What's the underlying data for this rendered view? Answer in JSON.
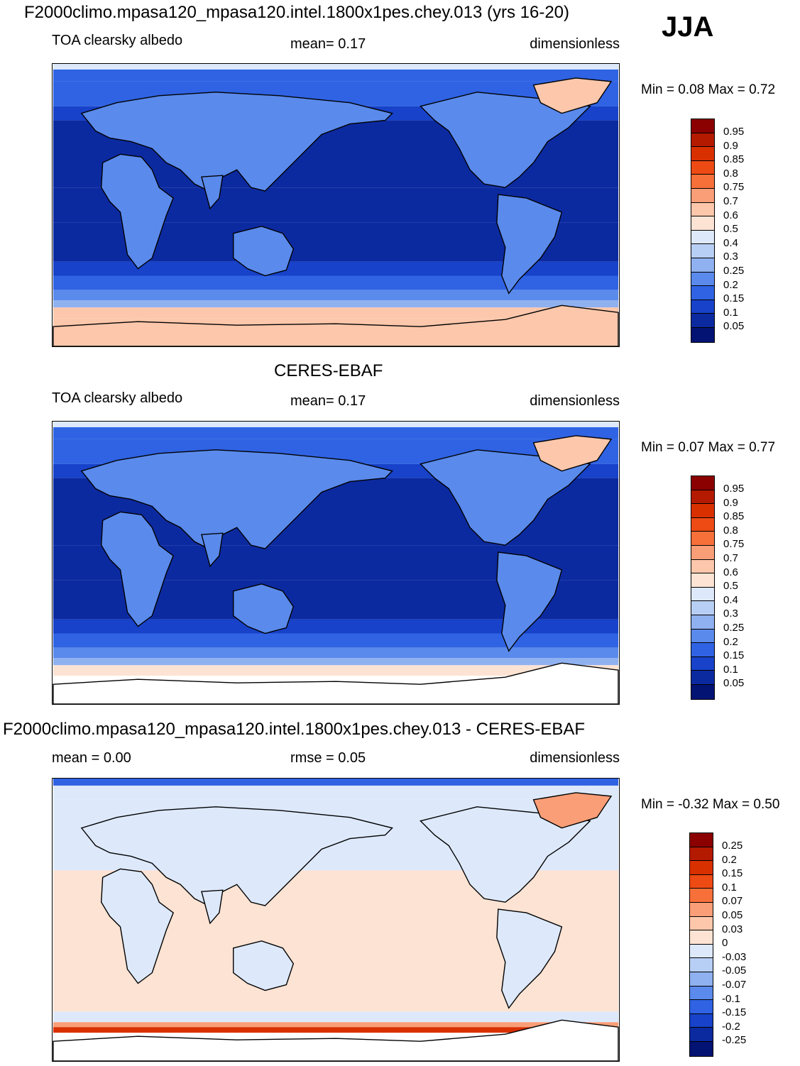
{
  "header": {
    "title": "F2000climo.mpasa120_mpasa120.intel.1800x1pes.chey.013 (yrs 16-20)",
    "season": "JJA"
  },
  "panels": [
    {
      "heading": "",
      "left_label": "TOA clearsky albedo",
      "center_label": "mean=   0.17",
      "right_label": "dimensionless",
      "minmax": "Min =   0.08 Max =   0.72"
    },
    {
      "heading": "CERES-EBAF",
      "left_label": "TOA clearsky albedo",
      "center_label": "mean=   0.17",
      "right_label": "dimensionless",
      "minmax": "Min =   0.07 Max =   0.77"
    },
    {
      "heading": "F2000climo.mpasa120_mpasa120.intel.1800x1pes.chey.013 - CERES-EBAF",
      "left_label": "mean =   0.00",
      "center_label": "rmse =    0.05",
      "right_label": "dimensionless",
      "minmax": "Min =  -0.32 Max =   0.50"
    }
  ],
  "chart_data": [
    {
      "type": "heatmap",
      "title": "TOA clearsky albedo",
      "units": "dimensionless",
      "mean": 0.17,
      "min": 0.08,
      "max": 0.72,
      "colorbar_labels": [
        "0.95",
        "0.9",
        "0.85",
        "0.8",
        "0.75",
        "0.7",
        "0.6",
        "0.5",
        "0.4",
        "0.3",
        "0.25",
        "0.2",
        "0.15",
        "0.1",
        "0.05"
      ],
      "colorbar_colors": [
        "#8b0000",
        "#b41a00",
        "#d93000",
        "#ee4a14",
        "#f7703a",
        "#fa9e78",
        "#fcc7ab",
        "#fde3d3",
        "#dde9fb",
        "#b8cff5",
        "#8fb1f0",
        "#5a8aec",
        "#2f63e3",
        "#1742c9",
        "#0c2aa0",
        "#031373"
      ]
    },
    {
      "type": "heatmap",
      "title": "TOA clearsky albedo",
      "units": "dimensionless",
      "mean": 0.17,
      "min": 0.07,
      "max": 0.77,
      "colorbar_labels": [
        "0.95",
        "0.9",
        "0.85",
        "0.8",
        "0.75",
        "0.7",
        "0.6",
        "0.5",
        "0.4",
        "0.3",
        "0.25",
        "0.2",
        "0.15",
        "0.1",
        "0.05"
      ],
      "colorbar_colors": [
        "#8b0000",
        "#b41a00",
        "#d93000",
        "#ee4a14",
        "#f7703a",
        "#fa9e78",
        "#fcc7ab",
        "#fde3d3",
        "#dde9fb",
        "#b8cff5",
        "#8fb1f0",
        "#5a8aec",
        "#2f63e3",
        "#1742c9",
        "#0c2aa0",
        "#031373"
      ]
    },
    {
      "type": "heatmap",
      "title": "F2000climo.mpasa120_mpasa120.intel.1800x1pes.chey.013 - CERES-EBAF",
      "units": "dimensionless",
      "mean": 0.0,
      "rmse": 0.05,
      "min": -0.32,
      "max": 0.5,
      "colorbar_labels": [
        "0.25",
        "0.2",
        "0.15",
        "0.1",
        "0.07",
        "0.05",
        "0.03",
        "0",
        "-0.03",
        "-0.05",
        "-0.07",
        "-0.1",
        "-0.15",
        "-0.2",
        "-0.25"
      ],
      "colorbar_colors": [
        "#8b0000",
        "#b41a00",
        "#d93000",
        "#ee4a14",
        "#f7703a",
        "#fa9e78",
        "#fcc7ab",
        "#fde3d3",
        "#dde9fb",
        "#b8cff5",
        "#8fb1f0",
        "#5a8aec",
        "#2f63e3",
        "#1742c9",
        "#0c2aa0",
        "#031373"
      ]
    }
  ]
}
